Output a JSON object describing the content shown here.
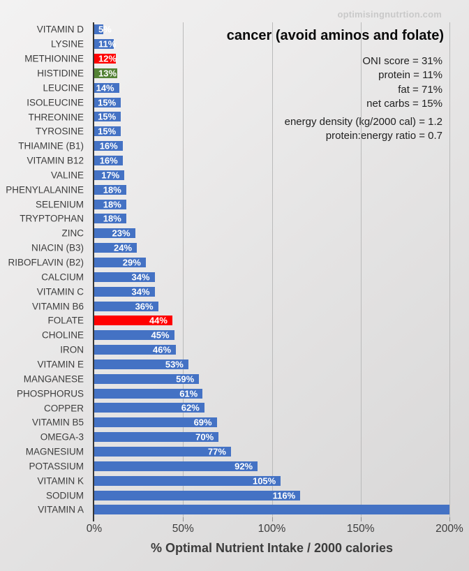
{
  "watermark": "optimisingnutrtion.com",
  "header": {
    "title": "cancer (avoid aminos and folate)"
  },
  "stats": {
    "primary": [
      "ONI score = 31%",
      "protein = 11%",
      "fat = 71%",
      "net carbs = 15%"
    ],
    "secondary": [
      "energy density (kg/2000 cal)  = 1.2",
      "protein:energy ratio = 0.7"
    ]
  },
  "chart_data": {
    "type": "bar",
    "orientation": "horizontal",
    "title": "cancer (avoid aminos and folate)",
    "xlabel": "% Optimal Nutrient Intake / 2000 calories",
    "ylabel": "",
    "xlim": [
      0,
      200
    ],
    "x_tick_labels": [
      "0%",
      "50%",
      "100%",
      "150%",
      "200%"
    ],
    "grid": "vertical",
    "legend": false,
    "bar_color_default": "#4472C4",
    "bar_color_overrides": {
      "METHIONINE": "#FF0000",
      "HISTIDINE": "#548235",
      "FOLATE": "#FF0000"
    },
    "categories": [
      "VITAMIN D",
      "LYSINE",
      "METHIONINE",
      "HISTIDINE",
      "LEUCINE",
      "ISOLEUCINE",
      "THREONINE",
      "TYROSINE",
      "THIAMINE (B1)",
      "VITAMIN B12",
      "VALINE",
      "PHENYLALANINE",
      "SELENIUM",
      "TRYPTOPHAN",
      "ZINC",
      "NIACIN (B3)",
      "RIBOFLAVIN (B2)",
      "CALCIUM",
      "VITAMIN C",
      "VITAMIN B6",
      "FOLATE",
      "CHOLINE",
      "IRON",
      "VITAMIN E",
      "MANGANESE",
      "PHOSPHORUS",
      "COPPER",
      "VITAMIN B5",
      "OMEGA-3",
      "MAGNESIUM",
      "POTASSIUM",
      "VITAMIN K",
      "SODIUM",
      "VITAMIN A"
    ],
    "values": [
      5,
      11,
      12,
      13,
      14,
      15,
      15,
      15,
      16,
      16,
      17,
      18,
      18,
      18,
      23,
      24,
      29,
      34,
      34,
      36,
      44,
      45,
      46,
      53,
      59,
      61,
      62,
      69,
      70,
      77,
      92,
      105,
      116,
      200
    ],
    "data_labels": [
      "5%",
      "11%",
      "12%",
      "13%",
      "14%",
      "15%",
      "15%",
      "15%",
      "16%",
      "16%",
      "17%",
      "18%",
      "18%",
      "18%",
      "23%",
      "24%",
      "29%",
      "34%",
      "34%",
      "36%",
      "44%",
      "45%",
      "46%",
      "53%",
      "59%",
      "61%",
      "62%",
      "69%",
      "70%",
      "77%",
      "92%",
      "105%",
      "116%",
      ""
    ]
  }
}
